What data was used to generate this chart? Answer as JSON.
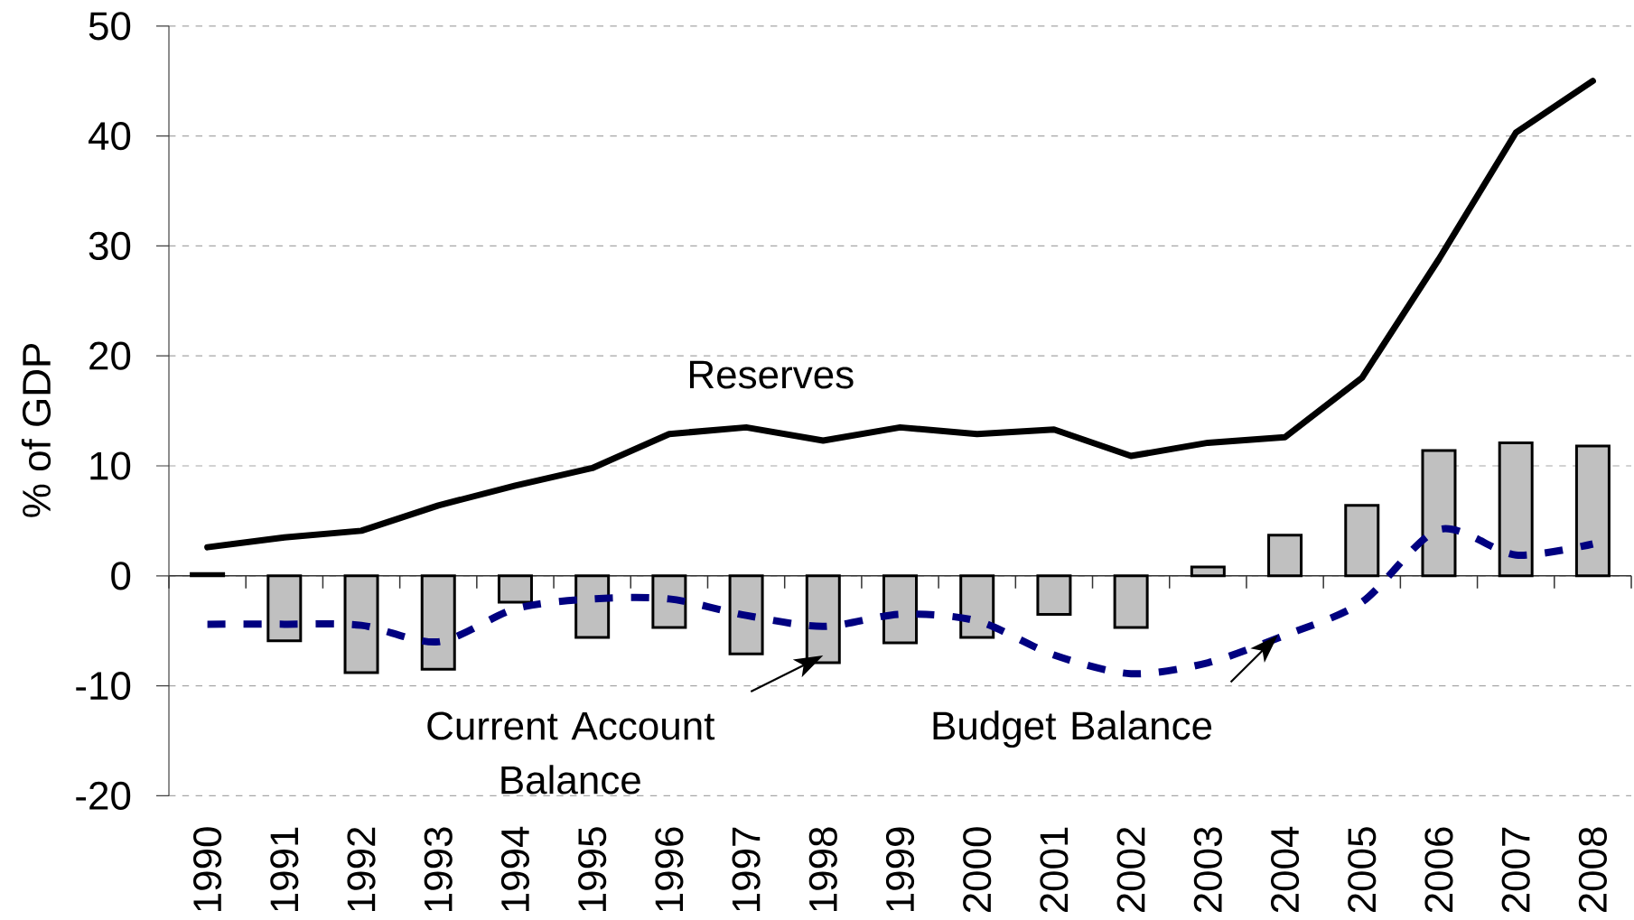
{
  "chart_data": {
    "type": "bar",
    "ylabel": "% of GDP",
    "categories": [
      "1990",
      "1991",
      "1992",
      "1993",
      "1994",
      "1995",
      "1996",
      "1997",
      "1998",
      "1999",
      "2000",
      "2001",
      "2002",
      "2003",
      "2004",
      "2005",
      "2006",
      "2007",
      "2008"
    ],
    "ylim": [
      -20,
      50
    ],
    "yticks": [
      -20,
      -10,
      0,
      10,
      20,
      30,
      40,
      50
    ],
    "grid": "y",
    "legend": false,
    "series": [
      {
        "name": "Current Account Balance",
        "color": "#c0c0c0",
        "values": [
          0.2,
          -5.9,
          -8.8,
          -8.5,
          -2.4,
          -5.6,
          -4.7,
          -7.1,
          -7.9,
          -6.1,
          -5.6,
          -3.5,
          -4.7,
          0.8,
          3.7,
          6.4,
          11.4,
          12.1,
          11.8
        ]
      },
      {
        "name": "Reserves",
        "type": "line",
        "color": "#000000",
        "line_style": "solid",
        "values": [
          2.6,
          3.5,
          4.1,
          6.4,
          8.2,
          9.8,
          12.9,
          13.5,
          12.3,
          13.5,
          12.9,
          13.3,
          10.9,
          12.1,
          12.6,
          18.0,
          28.8,
          40.3,
          45.0
        ]
      },
      {
        "name": "Budget Balance",
        "type": "line",
        "color": "#000080",
        "line_style": "dashed",
        "values": [
          -4.4,
          -4.4,
          -4.5,
          -6.0,
          -3.0,
          -2.1,
          -2.1,
          -3.6,
          -4.6,
          -3.5,
          -4.1,
          -7.2,
          -8.9,
          -7.9,
          -5.4,
          -2.4,
          4.2,
          1.9,
          2.9
        ]
      }
    ]
  }
}
